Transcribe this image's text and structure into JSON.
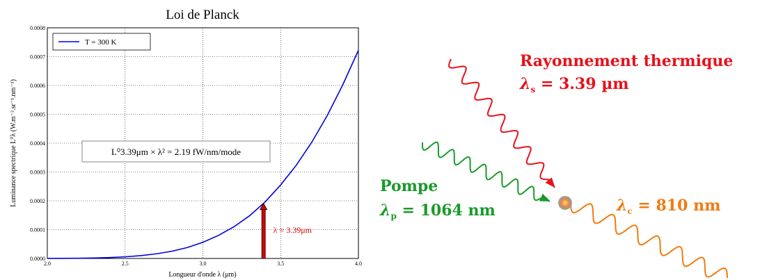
{
  "chart_data": {
    "type": "line",
    "title": "Loi de Planck",
    "x_label": "Longueur d'onde λ (μm)",
    "y_label": "Luminance spectrique L⁰λ (W.m⁻².sr⁻¹.nm⁻¹)",
    "x": [
      2.0,
      2.1,
      2.2,
      2.3,
      2.4,
      2.5,
      2.6,
      2.7,
      2.8,
      2.9,
      3.0,
      3.1,
      3.2,
      3.3,
      3.4,
      3.5,
      3.6,
      3.7,
      3.8,
      3.9,
      4.0
    ],
    "series": [
      {
        "name": "T = 300 K",
        "color": "#0000dd",
        "values": [
          1.4e-07,
          3.5e-07,
          7.9e-07,
          1.63e-06,
          3.14e-06,
          5.7e-06,
          9.7e-06,
          1.6e-05,
          2.5e-05,
          3.8e-05,
          5.6e-05,
          8e-05,
          0.00011,
          0.000148,
          0.000196,
          0.000255,
          0.000323,
          0.000403,
          0.000496,
          0.000603,
          0.000722
        ]
      }
    ],
    "xlim": [
      2.0,
      4.0
    ],
    "xticks": [
      {
        "value": 2.0,
        "label": "2.0"
      },
      {
        "value": 2.5,
        "label": "2.5"
      },
      {
        "value": 3.0,
        "label": "3.0"
      },
      {
        "value": 3.5,
        "label": "3.5"
      },
      {
        "value": 4.0,
        "label": "4.0"
      }
    ],
    "ylim": [
      0,
      0.0008
    ],
    "yticks": [
      {
        "value": 0,
        "label": "0.0000"
      },
      {
        "value": 0.0001,
        "label": "0.0001"
      },
      {
        "value": 0.0002,
        "label": "0.0002"
      },
      {
        "value": 0.0003,
        "label": "0.0003"
      },
      {
        "value": 0.0004,
        "label": "0.0004"
      },
      {
        "value": 0.0005,
        "label": "0.0005"
      },
      {
        "value": 0.0006,
        "label": "0.0006"
      },
      {
        "value": 0.0007,
        "label": "0.0007"
      },
      {
        "value": 0.0008,
        "label": "0.0008"
      }
    ],
    "grid": true,
    "legend": "upper left",
    "annotations": {
      "box": "L⁰3.39μm × λ² = 2.19 fW/nm/mode",
      "arrow": {
        "x": 3.39,
        "y": 0.000191,
        "label": "λ = 3.39μm",
        "color": "#dd0000"
      }
    }
  },
  "diagram": {
    "thermal": {
      "title": "Rayonnement thermique",
      "symbol": "λ",
      "sub": "s",
      "text": " = 3.39 µm",
      "color": "#e8101a"
    },
    "pump": {
      "title": "Pompe",
      "symbol": "λ",
      "sub": "p",
      "text": " = 1064 nm",
      "color": "#1a9a2a"
    },
    "output": {
      "symbol": "λ",
      "sub": "c",
      "text": " = 810 nm",
      "color": "#f07b10"
    }
  }
}
